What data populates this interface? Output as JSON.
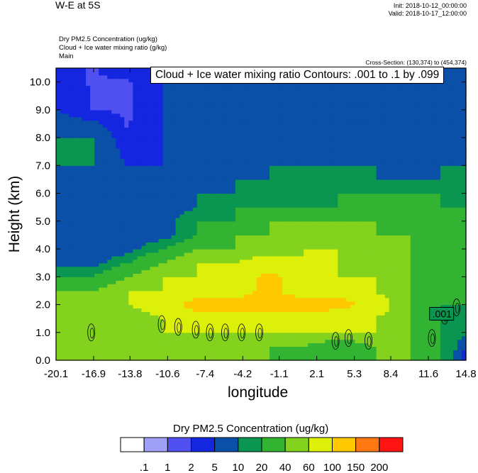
{
  "header": {
    "title": "W-E at 5S",
    "init": "Init: 2018-10-12_00:00:00",
    "valid": "Valid: 2018-10-17_12:00:00",
    "field1": "Dry PM2.5 Concentration   (ug/kg)",
    "field2": "Cloud + Ice water mixing ratio   (g/kg)",
    "field3": "Main",
    "cross_section": "Cross-Section: (130,374) to (454,374)"
  },
  "chart_data": {
    "type": "heatmap",
    "title": "Cloud + Ice water mixing ratio Contours: .001 to .1 by .099",
    "xlabel": "longitude",
    "ylabel": "Height (km)",
    "xlim": [
      -20.1,
      14.8
    ],
    "ylim": [
      0.0,
      10.5
    ],
    "x_ticks": [
      "-20.1",
      "-16.9",
      "-13.8",
      "-10.6",
      "-7.4",
      "-4.2",
      "-1.1",
      "2.1",
      "5.3",
      "8.4",
      "11.6",
      "14.8"
    ],
    "y_ticks": [
      "0.0",
      "1.0",
      "2.0",
      "3.0",
      "4.0",
      "5.0",
      "6.0",
      "7.0",
      "8.0",
      "9.0",
      "10.0"
    ],
    "contour_label": ".001",
    "colorbar": {
      "title": "Dry PM2.5 Concentration  (ug/kg)",
      "labels": [
        ".1",
        "1",
        "2",
        "5",
        "10",
        "20",
        "40",
        "60",
        "100",
        "150",
        "200"
      ],
      "colors": [
        "#ffffff",
        "#a0a0f8",
        "#5050f0",
        "#1426e0",
        "#0a50a8",
        "#0a9650",
        "#32b432",
        "#82d21e",
        "#dcf00a",
        "#ffc800",
        "#ff7814",
        "#ff1414"
      ]
    },
    "levels": [
      0.1,
      1,
      2,
      5,
      10,
      20,
      40,
      60,
      100,
      150,
      200
    ],
    "field_columns_lon": [
      -20.1,
      -17.0,
      -14.0,
      -11.0,
      -8.0,
      -5.0,
      -2.0,
      1.0,
      4.0,
      7.0,
      10.0,
      12.5,
      14.8
    ],
    "field_rows_km": [
      0.0,
      0.5,
      1.0,
      1.5,
      2.0,
      2.5,
      3.0,
      3.5,
      4.0,
      4.5,
      5.0,
      5.5,
      6.0,
      6.5,
      7.0,
      8.0,
      9.0,
      10.0,
      10.5
    ],
    "field_values": [
      [
        40,
        40,
        40,
        40,
        40,
        40,
        40,
        20,
        20,
        40,
        40,
        20,
        0
      ],
      [
        40,
        40,
        40,
        40,
        40,
        40,
        40,
        40,
        20,
        40,
        40,
        20,
        5
      ],
      [
        40,
        40,
        40,
        60,
        60,
        60,
        60,
        60,
        60,
        60,
        40,
        20,
        10
      ],
      [
        40,
        40,
        40,
        60,
        80,
        80,
        80,
        80,
        60,
        60,
        40,
        20,
        10
      ],
      [
        40,
        40,
        60,
        80,
        120,
        120,
        120,
        120,
        120,
        80,
        40,
        20,
        20
      ],
      [
        40,
        40,
        60,
        60,
        80,
        80,
        110,
        80,
        80,
        60,
        40,
        20,
        20
      ],
      [
        20,
        20,
        40,
        60,
        60,
        80,
        110,
        80,
        60,
        60,
        40,
        20,
        20
      ],
      [
        5,
        5,
        20,
        40,
        60,
        60,
        80,
        60,
        60,
        40,
        40,
        20,
        20
      ],
      [
        5,
        5,
        5,
        20,
        40,
        40,
        40,
        60,
        60,
        40,
        40,
        20,
        20
      ],
      [
        5,
        5,
        5,
        5,
        20,
        40,
        40,
        40,
        40,
        40,
        40,
        20,
        20
      ],
      [
        5,
        5,
        5,
        5,
        20,
        20,
        40,
        40,
        40,
        40,
        20,
        20,
        20
      ],
      [
        5,
        5,
        5,
        5,
        10,
        20,
        20,
        20,
        20,
        20,
        20,
        20,
        20
      ],
      [
        5,
        5,
        5,
        5,
        10,
        10,
        20,
        10,
        20,
        20,
        20,
        20,
        10
      ],
      [
        5,
        5,
        5,
        5,
        5,
        10,
        10,
        10,
        10,
        10,
        10,
        10,
        10
      ],
      [
        10,
        10,
        5,
        5,
        5,
        5,
        10,
        10,
        10,
        10,
        5,
        10,
        10
      ],
      [
        10,
        10,
        2,
        5,
        5,
        5,
        5,
        5,
        5,
        5,
        5,
        5,
        5
      ],
      [
        5,
        2,
        1.5,
        5,
        5,
        5,
        5,
        5,
        5,
        5,
        5,
        5,
        5
      ],
      [
        5,
        1.5,
        1.5,
        5,
        5,
        5,
        5,
        5,
        5,
        5,
        5,
        5,
        5
      ],
      [
        5,
        1.5,
        5,
        5,
        5,
        5,
        5,
        5,
        5,
        5,
        5,
        5,
        5
      ]
    ],
    "cloud_contours": [
      {
        "lon": -17.1,
        "h": 1.0
      },
      {
        "lon": -11.1,
        "h": 1.3
      },
      {
        "lon": -9.7,
        "h": 1.2
      },
      {
        "lon": -8.2,
        "h": 1.1
      },
      {
        "lon": -7.0,
        "h": 1.0
      },
      {
        "lon": -5.7,
        "h": 1.0
      },
      {
        "lon": -4.3,
        "h": 1.0
      },
      {
        "lon": -2.8,
        "h": 1.0
      },
      {
        "lon": 3.7,
        "h": 0.7
      },
      {
        "lon": 4.8,
        "h": 0.8
      },
      {
        "lon": 6.5,
        "h": 0.7
      },
      {
        "lon": 11.9,
        "h": 0.8
      },
      {
        "lon": 13.0,
        "h": 1.6
      },
      {
        "lon": 14.0,
        "h": 1.9
      }
    ]
  }
}
